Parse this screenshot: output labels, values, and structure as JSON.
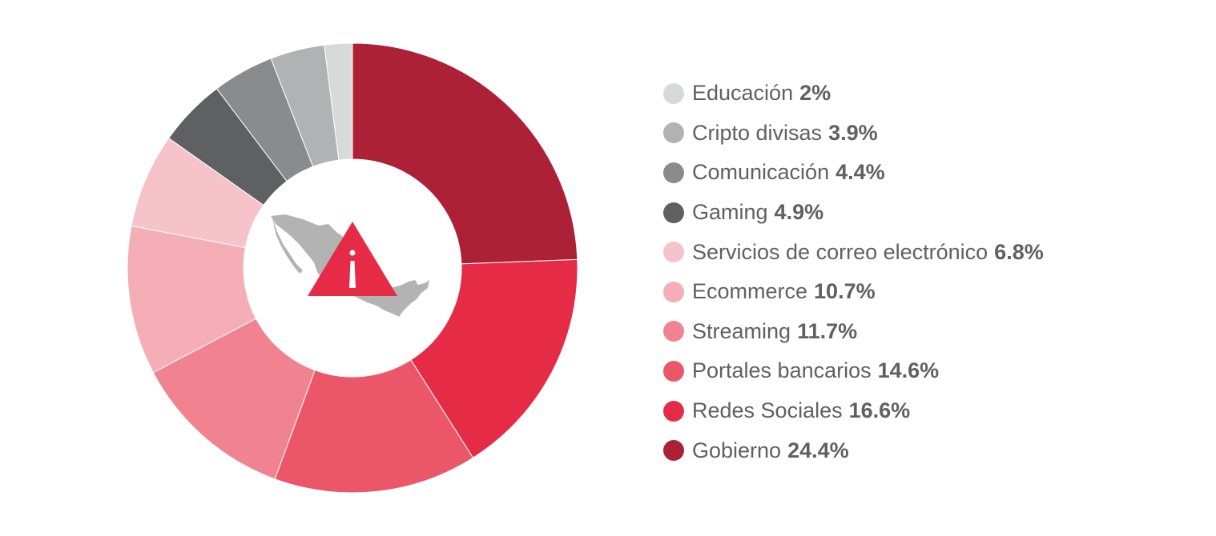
{
  "chart_data": {
    "type": "pie",
    "variant": "donut",
    "legend_position": "right",
    "slice_order": "clockwise from top",
    "slices": [
      {
        "label": "Gobierno",
        "value": 24.4,
        "value_label": "24.4%",
        "color": "#ad2137"
      },
      {
        "label": "Redes Sociales",
        "value": 16.6,
        "value_label": "16.6%",
        "color": "#e62b47"
      },
      {
        "label": "Portales bancarios",
        "value": 14.6,
        "value_label": "14.6%",
        "color": "#ec5669"
      },
      {
        "label": "Streaming",
        "value": 11.7,
        "value_label": "11.7%",
        "color": "#f0838f"
      },
      {
        "label": "Ecommerce",
        "value": 10.7,
        "value_label": "10.7%",
        "color": "#f5adb6"
      },
      {
        "label": "Servicios de correo electrónico",
        "value": 6.8,
        "value_label": "6.8%",
        "color": "#f6c3cb"
      },
      {
        "label": "Gaming",
        "value": 4.9,
        "value_label": "4.9%",
        "color": "#5f6062"
      },
      {
        "label": "Comunicación",
        "value": 4.4,
        "value_label": "4.4%",
        "color": "#8a8b8d"
      },
      {
        "label": "Cripto divisas",
        "value": 3.9,
        "value_label": "3.9%",
        "color": "#b1b2b3"
      },
      {
        "label": "Educación",
        "value": 2.0,
        "value_label": "2%",
        "color": "#d8d9d9"
      }
    ],
    "legend_order": [
      "Educación",
      "Cripto divisas",
      "Comunicación",
      "Gaming",
      "Servicios de correo electrónico",
      "Ecommerce",
      "Streaming",
      "Portales bancarios",
      "Redes Sociales",
      "Gobierno"
    ]
  },
  "center_graphic": {
    "icons": [
      "mexico-map-icon",
      "warning-triangle-icon"
    ],
    "map_color": "#b3b3b3",
    "warning_color": "#e62b47"
  }
}
